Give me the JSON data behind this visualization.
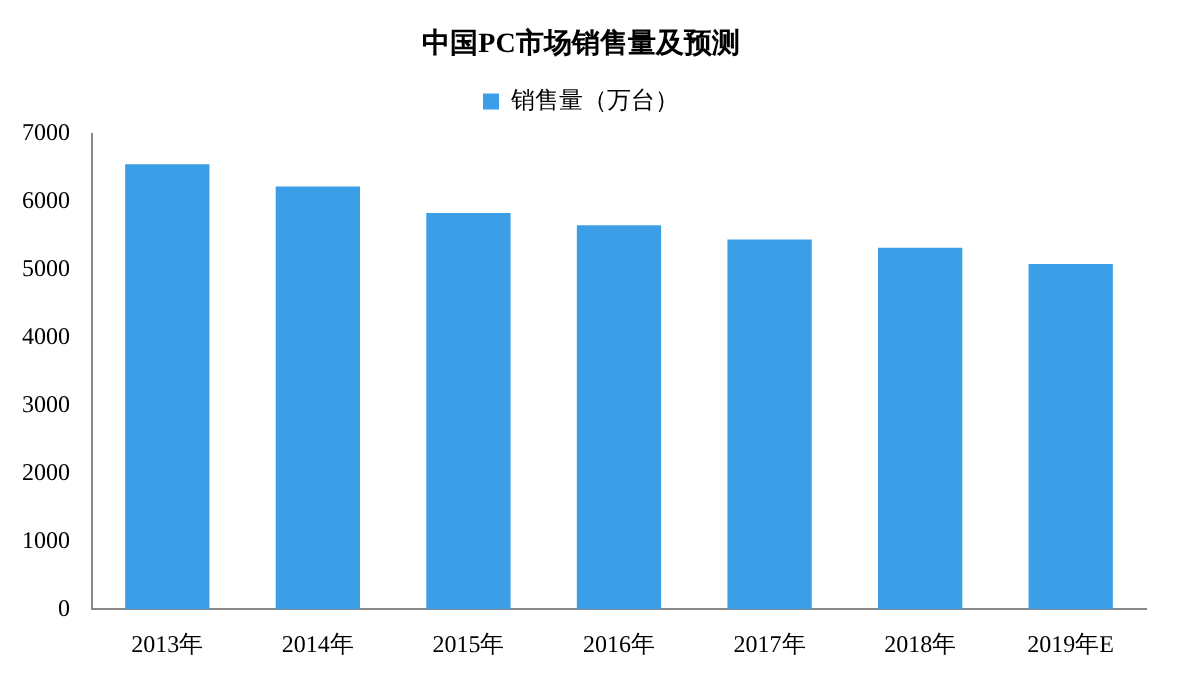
{
  "chart_data": {
    "type": "bar",
    "title": "中国PC市场销售量及预测",
    "categories": [
      "2013年",
      "2014年",
      "2015年",
      "2016年",
      "2017年",
      "2018年",
      "2019年E"
    ],
    "series": [
      {
        "name": "销售量（万台）",
        "color": "#3d9ee8",
        "values": [
          6550,
          6220,
          5830,
          5650,
          5440,
          5320,
          5080
        ]
      }
    ],
    "ylim": [
      0,
      7000
    ],
    "yticks": [
      0,
      1000,
      2000,
      3000,
      4000,
      5000,
      6000,
      7000
    ],
    "grid": false,
    "legend": "top"
  }
}
